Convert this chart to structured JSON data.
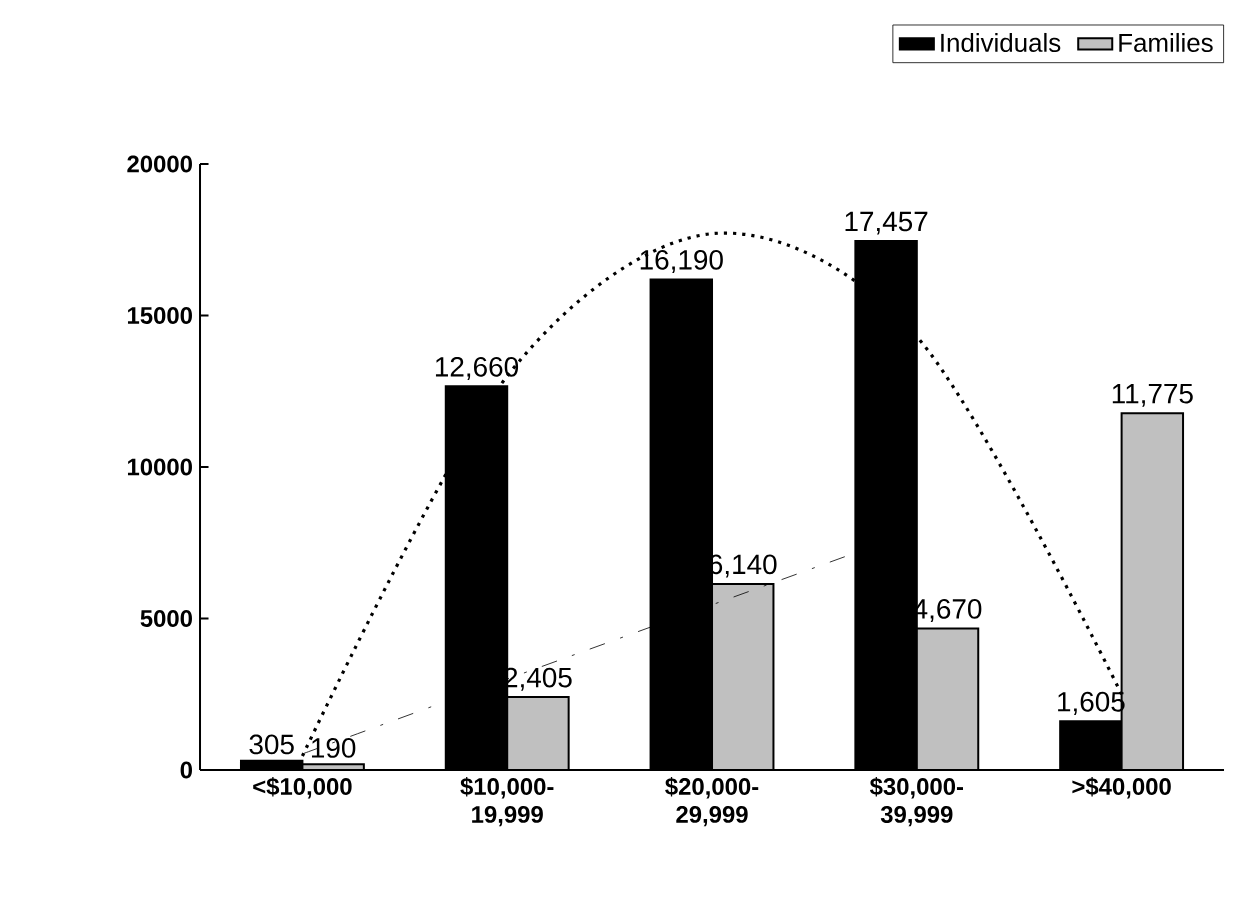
{
  "chart_data": {
    "type": "bar",
    "categories": [
      "<$10,000",
      "$10,000- 19,999",
      "$20,000- 29,999",
      "$30,000- 39,999",
      ">$40,000"
    ],
    "series": [
      {
        "name": "Individuals",
        "color": "#000000",
        "values": [
          305,
          12660,
          16190,
          17457,
          1605
        ],
        "value_labels": [
          "305",
          "12,660",
          "16,190",
          "17,457",
          "1,605"
        ]
      },
      {
        "name": "Families",
        "color": "#c0c0c0",
        "values": [
          190,
          2405,
          6140,
          4670,
          11775
        ],
        "value_labels": [
          "190",
          "2,405",
          "6,140",
          "4,670",
          "11,775"
        ]
      },
      {
        "type": "line",
        "color": "#000000",
        "line_style": "dotted",
        "values": [
          460,
          13000,
          17700,
          14300,
          2500
        ]
      },
      {
        "type": "line",
        "color": "#000000",
        "line_style": "dashed",
        "values": [
          530,
          3000,
          5450,
          7900,
          null
        ]
      }
    ],
    "ylim": [
      0,
      20000
    ],
    "yticks": [
      0,
      5000,
      10000,
      15000,
      20000
    ],
    "grid": false,
    "legend": "top right"
  }
}
